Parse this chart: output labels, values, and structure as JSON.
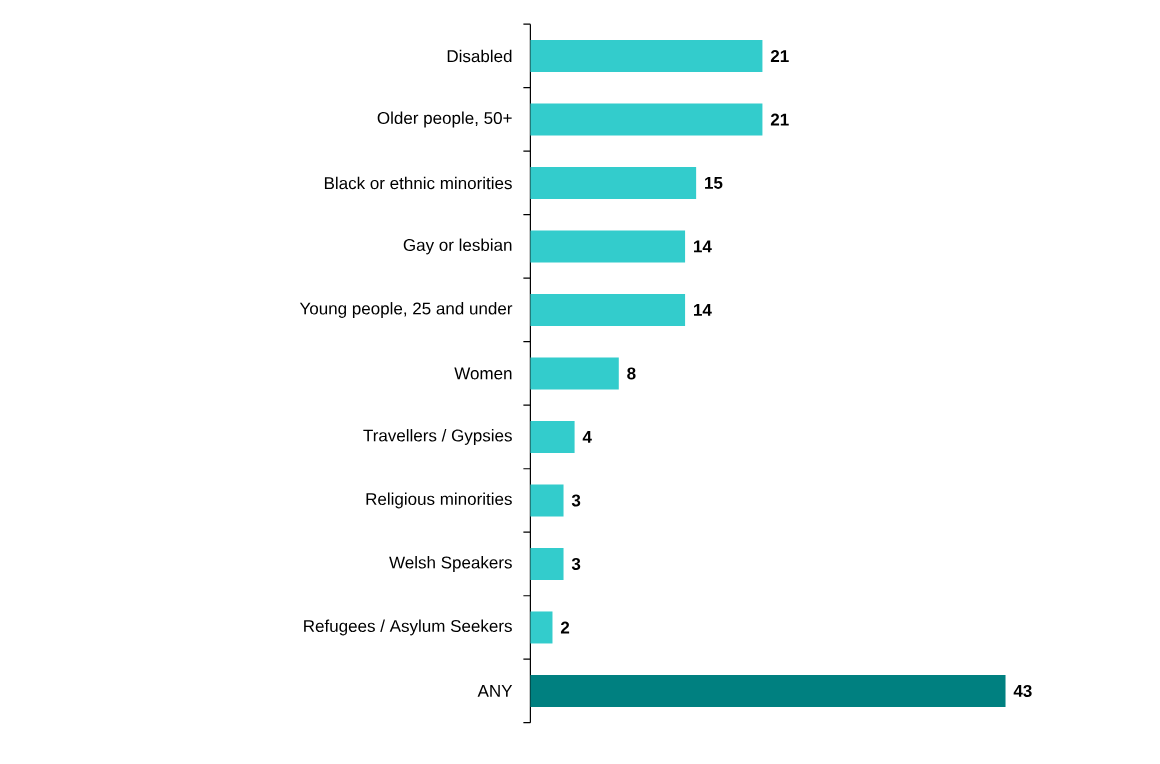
{
  "chart_data": {
    "type": "bar",
    "orientation": "horizontal",
    "categories": [
      "Disabled",
      "Older people, 50+",
      "Black or ethnic minorities",
      "Gay or lesbian",
      "Young people, 25 and under",
      "Women",
      "Travellers / Gypsies",
      "Religious minorities",
      "Welsh Speakers",
      "Refugees / Asylum Seekers",
      "ANY"
    ],
    "values": [
      21,
      21,
      15,
      14,
      14,
      8,
      4,
      3,
      3,
      2,
      43
    ],
    "colors": [
      "#33cccc",
      "#33cccc",
      "#33cccc",
      "#33cccc",
      "#33cccc",
      "#33cccc",
      "#33cccc",
      "#33cccc",
      "#33cccc",
      "#33cccc",
      "#008080"
    ],
    "data_labels": true
  }
}
